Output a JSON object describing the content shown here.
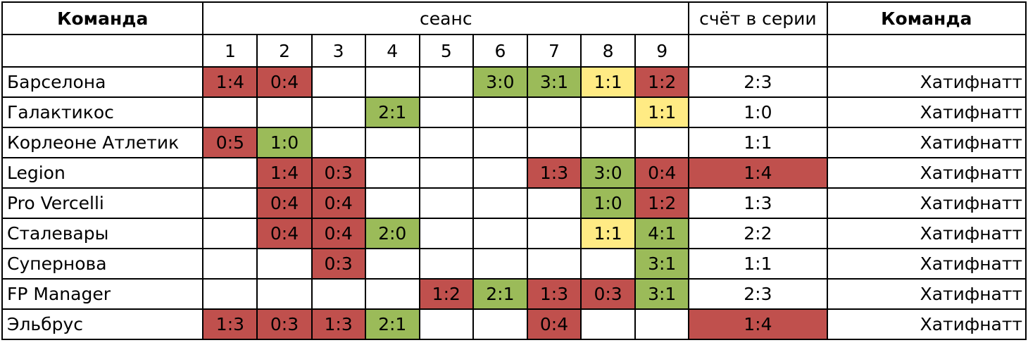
{
  "header": {
    "team_left": "Команда",
    "session": "сеанс",
    "series_score": "счёт в серии",
    "team_right": "Команда",
    "session_numbers": [
      "1",
      "2",
      "3",
      "4",
      "5",
      "6",
      "7",
      "8",
      "9"
    ]
  },
  "colors": {
    "loss": "#c0504d",
    "win": "#9bbb59",
    "draw": "#ffeb84"
  },
  "rows": [
    {
      "team": "Барселона",
      "opponent": "Хатифнатт",
      "series": "2:3",
      "series_color": "",
      "cells": [
        {
          "v": "1:4",
          "c": "red"
        },
        {
          "v": "0:4",
          "c": "red"
        },
        {
          "v": "",
          "c": ""
        },
        {
          "v": "",
          "c": ""
        },
        {
          "v": "",
          "c": ""
        },
        {
          "v": "3:0",
          "c": "green"
        },
        {
          "v": "3:1",
          "c": "green"
        },
        {
          "v": "1:1",
          "c": "yellow"
        },
        {
          "v": "1:2",
          "c": "red"
        }
      ]
    },
    {
      "team": "Галактикос",
      "opponent": "Хатифнатт",
      "series": "1:0",
      "series_color": "",
      "cells": [
        {
          "v": "",
          "c": ""
        },
        {
          "v": "",
          "c": ""
        },
        {
          "v": "",
          "c": ""
        },
        {
          "v": "2:1",
          "c": "green"
        },
        {
          "v": "",
          "c": ""
        },
        {
          "v": "",
          "c": ""
        },
        {
          "v": "",
          "c": ""
        },
        {
          "v": "",
          "c": ""
        },
        {
          "v": "1:1",
          "c": "yellow"
        }
      ]
    },
    {
      "team": "Корлеоне Атлетик",
      "opponent": "Хатифнатт",
      "series": "1:1",
      "series_color": "",
      "cells": [
        {
          "v": "0:5",
          "c": "red"
        },
        {
          "v": "1:0",
          "c": "green"
        },
        {
          "v": "",
          "c": ""
        },
        {
          "v": "",
          "c": ""
        },
        {
          "v": "",
          "c": ""
        },
        {
          "v": "",
          "c": ""
        },
        {
          "v": "",
          "c": ""
        },
        {
          "v": "",
          "c": ""
        },
        {
          "v": "",
          "c": ""
        }
      ]
    },
    {
      "team": "Legion",
      "opponent": "Хатифнатт",
      "series": "1:4",
      "series_color": "red",
      "cells": [
        {
          "v": "",
          "c": ""
        },
        {
          "v": "1:4",
          "c": "red"
        },
        {
          "v": "0:3",
          "c": "red"
        },
        {
          "v": "",
          "c": ""
        },
        {
          "v": "",
          "c": ""
        },
        {
          "v": "",
          "c": ""
        },
        {
          "v": "1:3",
          "c": "red"
        },
        {
          "v": "3:0",
          "c": "green"
        },
        {
          "v": "0:4",
          "c": "red"
        }
      ]
    },
    {
      "team": "Pro Vercelli",
      "opponent": "Хатифнатт",
      "series": "1:3",
      "series_color": "",
      "cells": [
        {
          "v": "",
          "c": ""
        },
        {
          "v": "0:4",
          "c": "red"
        },
        {
          "v": "0:4",
          "c": "red"
        },
        {
          "v": "",
          "c": ""
        },
        {
          "v": "",
          "c": ""
        },
        {
          "v": "",
          "c": ""
        },
        {
          "v": "",
          "c": ""
        },
        {
          "v": "1:0",
          "c": "green"
        },
        {
          "v": "1:2",
          "c": "red"
        }
      ]
    },
    {
      "team": "Сталевары",
      "opponent": "Хатифнатт",
      "series": "2:2",
      "series_color": "",
      "cells": [
        {
          "v": "",
          "c": ""
        },
        {
          "v": "0:4",
          "c": "red"
        },
        {
          "v": "0:4",
          "c": "red"
        },
        {
          "v": "2:0",
          "c": "green"
        },
        {
          "v": "",
          "c": ""
        },
        {
          "v": "",
          "c": ""
        },
        {
          "v": "",
          "c": ""
        },
        {
          "v": "1:1",
          "c": "yellow"
        },
        {
          "v": "4:1",
          "c": "green"
        }
      ]
    },
    {
      "team": "Супернова",
      "opponent": "Хатифнатт",
      "series": "1:1",
      "series_color": "",
      "cells": [
        {
          "v": "",
          "c": ""
        },
        {
          "v": "",
          "c": ""
        },
        {
          "v": "0:3",
          "c": "red"
        },
        {
          "v": "",
          "c": ""
        },
        {
          "v": "",
          "c": ""
        },
        {
          "v": "",
          "c": ""
        },
        {
          "v": "",
          "c": ""
        },
        {
          "v": "",
          "c": ""
        },
        {
          "v": "3:1",
          "c": "green"
        }
      ]
    },
    {
      "team": "FP Manager",
      "opponent": "Хатифнатт",
      "series": "2:3",
      "series_color": "",
      "cells": [
        {
          "v": "",
          "c": ""
        },
        {
          "v": "",
          "c": ""
        },
        {
          "v": "",
          "c": ""
        },
        {
          "v": "",
          "c": ""
        },
        {
          "v": "1:2",
          "c": "red"
        },
        {
          "v": "2:1",
          "c": "green"
        },
        {
          "v": "1:3",
          "c": "red"
        },
        {
          "v": "0:3",
          "c": "red"
        },
        {
          "v": "3:1",
          "c": "green"
        }
      ]
    },
    {
      "team": "Эльбрус",
      "opponent": "Хатифнатт",
      "series": "1:4",
      "series_color": "red",
      "cells": [
        {
          "v": "1:3",
          "c": "red"
        },
        {
          "v": "0:3",
          "c": "red"
        },
        {
          "v": "1:3",
          "c": "red"
        },
        {
          "v": "2:1",
          "c": "green"
        },
        {
          "v": "",
          "c": ""
        },
        {
          "v": "",
          "c": ""
        },
        {
          "v": "0:4",
          "c": "red"
        },
        {
          "v": "",
          "c": ""
        },
        {
          "v": "",
          "c": ""
        }
      ]
    }
  ]
}
